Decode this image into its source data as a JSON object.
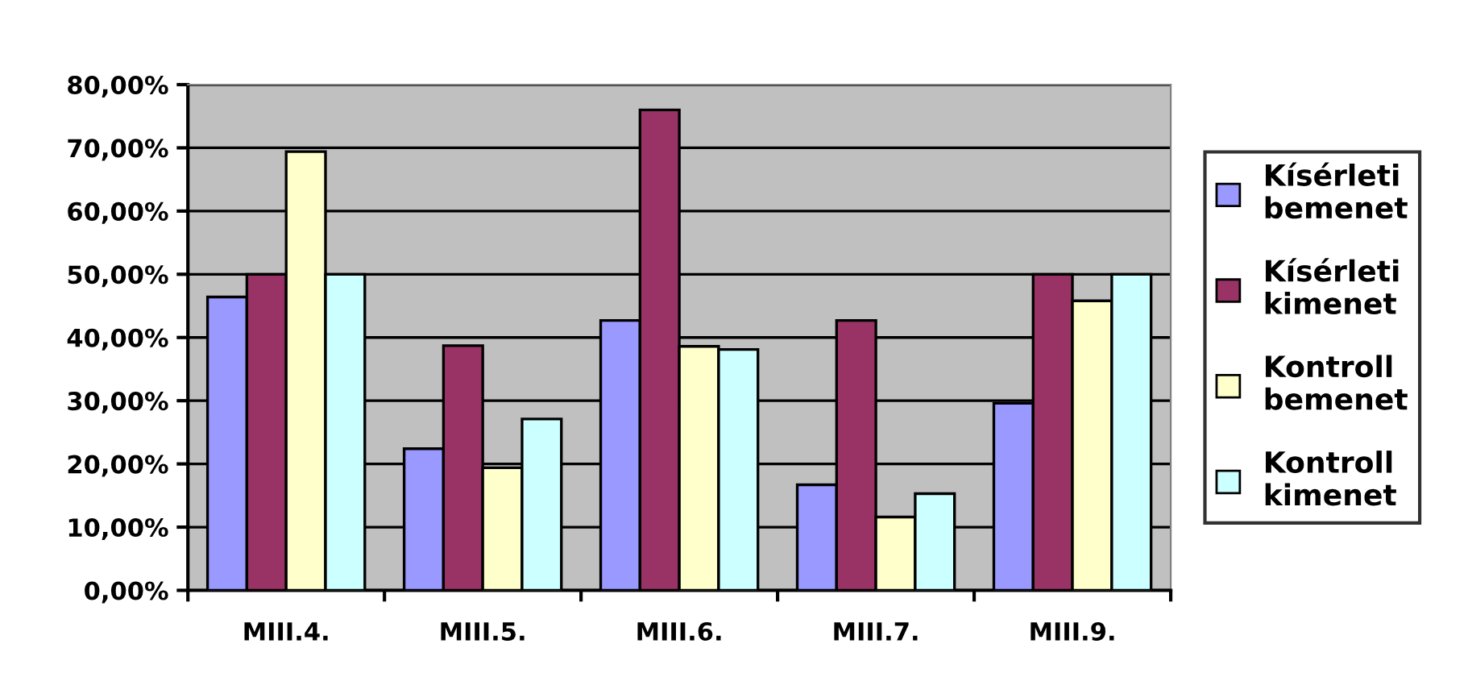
{
  "chart_data": {
    "type": "bar",
    "categories": [
      "MIII.4.",
      "MIII.5.",
      "MIII.6.",
      "MIII.7.",
      "MIII.9."
    ],
    "series": [
      {
        "name": "Kísérleti bemenet",
        "color": "#9999ff",
        "values": [
          46.4,
          22.4,
          42.7,
          16.7,
          29.6
        ]
      },
      {
        "name": "Kísérleti kimenet",
        "color": "#993366",
        "values": [
          50,
          38.7,
          76,
          42.7,
          50
        ]
      },
      {
        "name": "Kontroll bemenet",
        "color": "#ffffcc",
        "values": [
          69.4,
          19.4,
          38.6,
          11.6,
          45.8
        ]
      },
      {
        "name": "Kontroll kimenet",
        "color": "#ccffff",
        "values": [
          50,
          27.1,
          38.1,
          15.3,
          50
        ]
      }
    ],
    "ylim": [
      0,
      80
    ],
    "yticks": [
      {
        "value": 0,
        "label": "0,00%"
      },
      {
        "value": 10,
        "label": "10,00%"
      },
      {
        "value": 20,
        "label": "20,00%"
      },
      {
        "value": 30,
        "label": "30,00%"
      },
      {
        "value": 40,
        "label": "40,00%"
      },
      {
        "value": 50,
        "label": "50,00%"
      },
      {
        "value": 60,
        "label": "60,00%"
      },
      {
        "value": 70,
        "label": "70,00%"
      },
      {
        "value": 80,
        "label": "80,00%"
      }
    ],
    "grid": "y",
    "legend": "right"
  }
}
